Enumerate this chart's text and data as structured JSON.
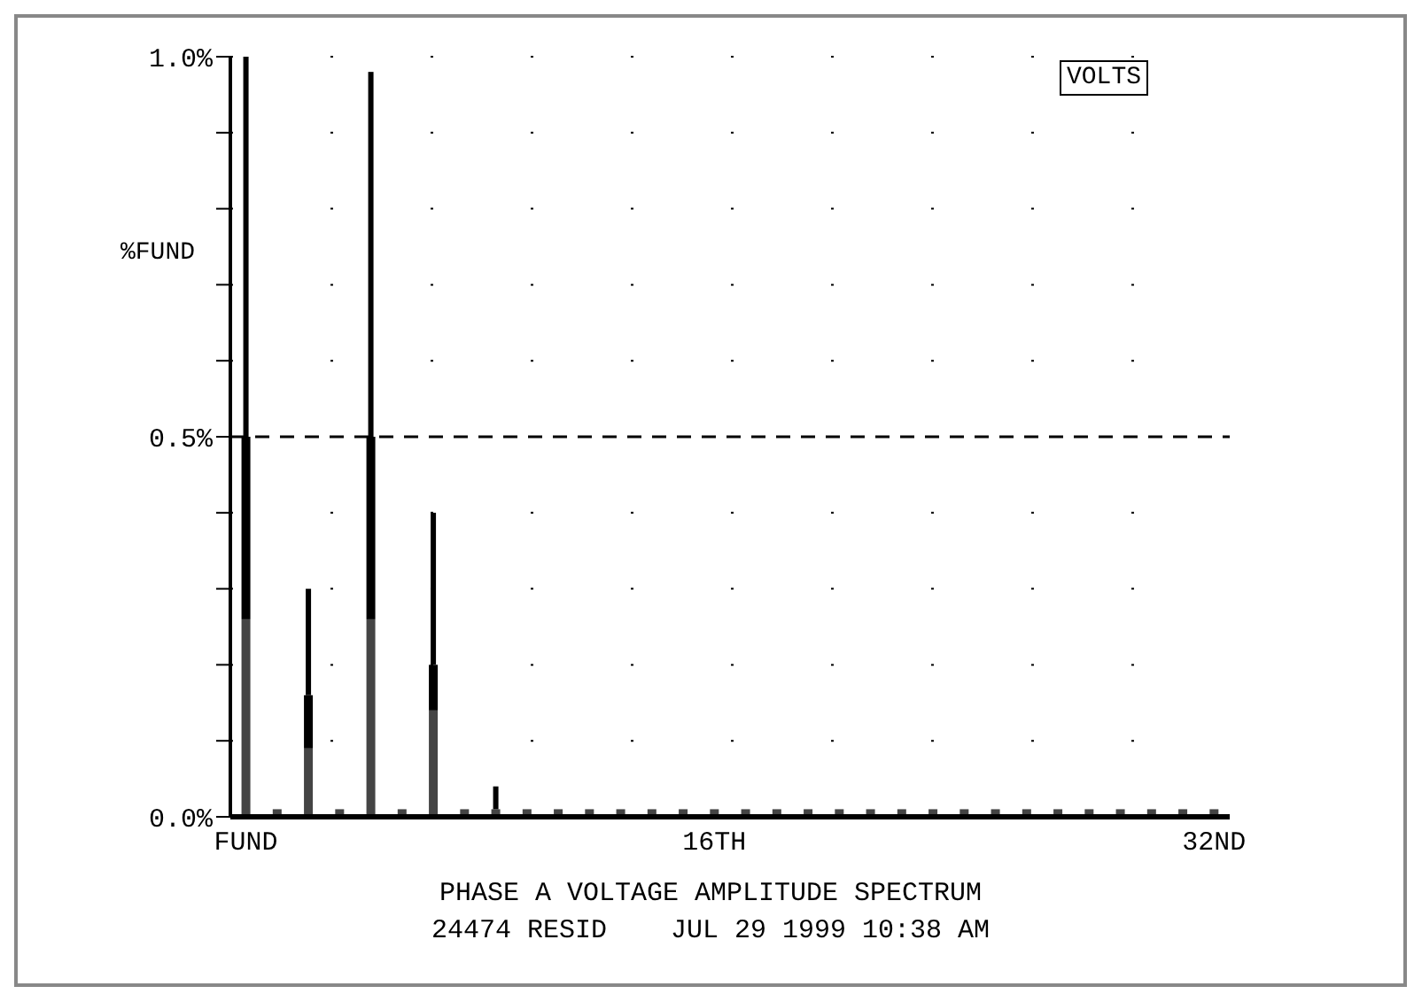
{
  "chart_data": {
    "type": "bar",
    "stacked": true,
    "title": "PHASE A VOLTAGE AMPLITUDE SPECTRUM",
    "ylabel": "%FUND",
    "categories": [
      "FUND",
      null,
      null,
      null,
      null,
      null,
      null,
      null,
      null,
      null,
      null,
      null,
      null,
      null,
      null,
      "16TH",
      null,
      null,
      null,
      null,
      null,
      null,
      null,
      null,
      null,
      null,
      null,
      null,
      null,
      null,
      null,
      "32ND"
    ],
    "series": [
      {
        "color": "#444444",
        "values": [
          0.26,
          0.01,
          0.09,
          0.01,
          0.26,
          0.01,
          0.14,
          0.01,
          0.01,
          0.01,
          0.01,
          0.01,
          0.01,
          0.01,
          0.01,
          0.01,
          0.01,
          0.01,
          0.01,
          0.01,
          0.01,
          0.01,
          0.01,
          0.01,
          0.01,
          0.01,
          0.01,
          0.01,
          0.01,
          0.01,
          0.01,
          0.01
        ]
      },
      {
        "color": "#000000",
        "values": [
          0.24,
          0,
          0.07,
          0,
          0.24,
          0,
          0.06,
          0,
          0,
          0,
          0,
          0,
          0,
          0,
          0,
          0,
          0,
          0,
          0,
          0,
          0,
          0,
          0,
          0,
          0,
          0,
          0,
          0,
          0,
          0,
          0,
          0
        ]
      },
      {
        "color": "#000000",
        "values": [
          0.5,
          0,
          0.14,
          0,
          0.48,
          0,
          0.2,
          0,
          0.03,
          0,
          0,
          0,
          0,
          0,
          0,
          0,
          0,
          0,
          0,
          0,
          0,
          0,
          0,
          0,
          0,
          0,
          0,
          0,
          0,
          0,
          0,
          0
        ]
      }
    ],
    "ylim": [
      0,
      1
    ],
    "yticks": [
      {
        "value": 0,
        "label": "0.0%"
      },
      {
        "value": 0.1,
        "label": null
      },
      {
        "value": 0.2,
        "label": null
      },
      {
        "value": 0.3,
        "label": null
      },
      {
        "value": 0.4,
        "label": null
      },
      {
        "value": 0.5,
        "label": "0.5%"
      },
      {
        "value": 0.6,
        "label": null
      },
      {
        "value": 0.7,
        "label": null
      },
      {
        "value": 0.8,
        "label": null
      },
      {
        "value": 0.9,
        "label": null
      },
      {
        "value": 1,
        "label": "1.0%"
      }
    ],
    "ref_lines": [
      {
        "axis": "y",
        "value": 0.5,
        "line_style": "dashed",
        "color": "#000000"
      }
    ],
    "grid": "y",
    "annotations": [
      "VOLTS",
      "24474 RESID    JUL 29 1999 10:38 AM"
    ]
  }
}
